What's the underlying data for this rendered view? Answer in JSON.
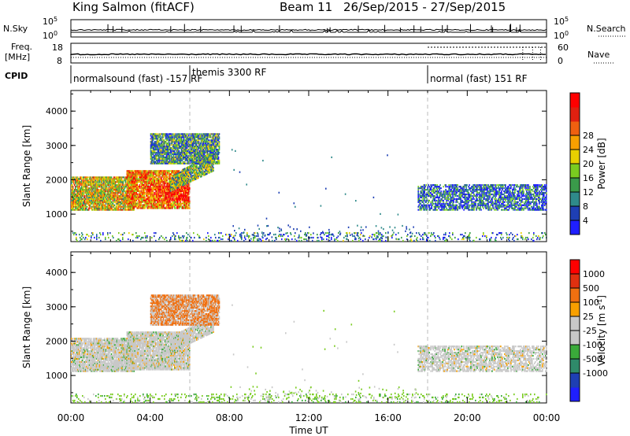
{
  "header": {
    "station": "King Salmon (fitACF)",
    "beam": "Beam 11",
    "dates": "26/Sep/2015 - 27/Sep/2015"
  },
  "top_panels": {
    "nsky_label": "N.Sky",
    "nsky_ticks": [
      "10^5",
      "10^0"
    ],
    "nsearch_label": "N.Search",
    "freq_label_1": "Freq.",
    "freq_label_2": "[MHz]",
    "freq_ticks": [
      "18",
      "8"
    ],
    "nave_label": "Nave",
    "nave_ticks": [
      "60",
      "0"
    ],
    "cpid_label": "CPID",
    "modes": [
      {
        "text": "normalsound (fast) -157 RF",
        "start_hour": 0
      },
      {
        "text": "themis 3300 RF",
        "start_hour": 6
      },
      {
        "text": "normal (fast) 151 RF",
        "start_hour": 18
      }
    ]
  },
  "chart_data": [
    {
      "type": "heatmap",
      "title": "",
      "ylabel": "Slant Range [km]",
      "xlabel": "",
      "xlim_hours": [
        0,
        24
      ],
      "ylim": [
        200,
        4600
      ],
      "yticks": [
        "1000",
        "2000",
        "3000",
        "4000"
      ],
      "colorbar_label": "Power [dB]",
      "colorbar_ticks": [
        "4",
        "8",
        "12",
        "16",
        "20",
        "24",
        "28"
      ],
      "colorbar_colors": [
        "#1f1fff",
        "#1e3fb4",
        "#2f8a8a",
        "#3a9a4a",
        "#7acc20",
        "#e8d000",
        "#f8a000",
        "#f06010",
        "#e02010",
        "#ff0000"
      ],
      "clusters": [
        {
          "name": "dayside",
          "t0": 0.0,
          "t1": 3.2,
          "r0": 1150,
          "r1": 2100,
          "level": 0.55
        },
        {
          "name": "main",
          "t0": 2.8,
          "t1": 6.0,
          "r0": 1200,
          "r1": 2300,
          "level": 0.7
        },
        {
          "name": "rising",
          "t0": 5.0,
          "t1": 7.2,
          "r0": 1700,
          "r1": 2900,
          "level": 0.4
        },
        {
          "name": "high",
          "t0": 4.0,
          "t1": 7.5,
          "r0": 2500,
          "r1": 3400,
          "level": 0.3
        },
        {
          "name": "evening",
          "t0": 17.5,
          "t1": 24.0,
          "r0": 1150,
          "r1": 1900,
          "level": 0.2
        },
        {
          "name": "ground",
          "t0": 0.0,
          "t1": 24.0,
          "r0": 250,
          "r1": 500,
          "level": 0.25
        }
      ]
    },
    {
      "type": "heatmap",
      "title": "",
      "ylabel": "Slant Range [km]",
      "xlabel": "Time UT",
      "xlim_hours": [
        0,
        24
      ],
      "ylim": [
        200,
        4600
      ],
      "yticks": [
        "1000",
        "2000",
        "3000",
        "4000"
      ],
      "xticks": [
        "00:00",
        "04:00",
        "08:00",
        "12:00",
        "16:00",
        "20:00",
        "00:00"
      ],
      "colorbar_label": "Velocity [m s^-1]",
      "colorbar_ticks": [
        "1000",
        "500",
        "100",
        "25",
        "-25",
        "-100",
        "-500",
        "-1000"
      ],
      "colorbar_colors": [
        "#1f1fff",
        "#1e3fb4",
        "#2f8a6a",
        "#3aaa3a",
        "#c8c8c8",
        "#c8c8c8",
        "#f8a000",
        "#f07010",
        "#e03010",
        "#ff0000"
      ]
    }
  ]
}
